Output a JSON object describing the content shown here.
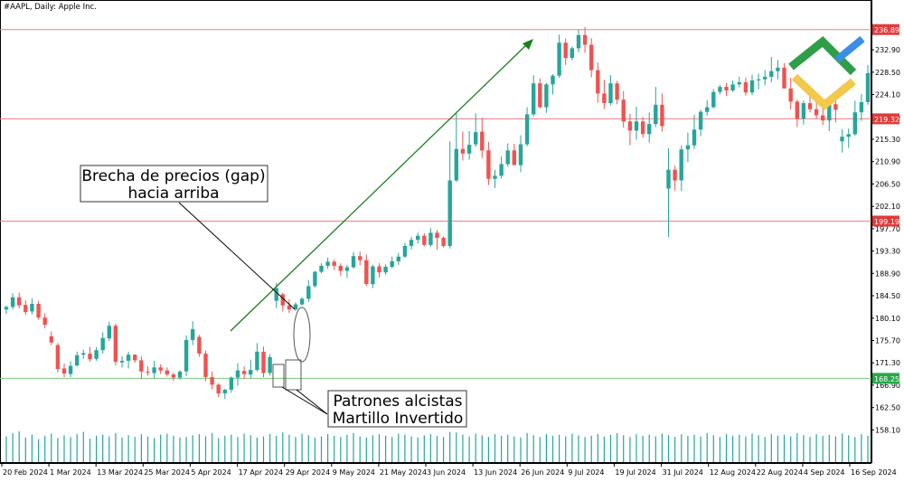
{
  "header": {
    "title": "#AAPL, Daily:  Apple Inc."
  },
  "colors": {
    "bull": "#26a69a",
    "bear": "#ef5350",
    "resistance_line": "#f08080",
    "support_line": "#7fc97f",
    "price_label_red": "#e03b3b",
    "price_label_green": "#27a84a",
    "trend_arrow": "#1a7f1a",
    "volume": "#26a69a",
    "logo_green": "#2e9e48",
    "logo_blue": "#3a8ee6",
    "logo_yellow": "#f2c94c"
  },
  "icons": {
    "logo": "litefinance-logo-icon"
  },
  "annotations": {
    "gap_callout": {
      "line1": "Brecha de precios (gap)",
      "line2": "hacia arriba"
    },
    "pattern_callout": {
      "line1": "Patrones alcistas",
      "line2": "Martillo Invertido"
    }
  },
  "chart_data": {
    "type": "candlestick",
    "title": "#AAPL, Daily:  Apple Inc.",
    "ylim": [
      155.5,
      239.5
    ],
    "y_ticks": [
      "232.90",
      "228.50",
      "224.10",
      "219.70",
      "215.30",
      "210.90",
      "206.50",
      "202.10",
      "197.70",
      "193.30",
      "188.90",
      "184.50",
      "180.10",
      "175.70",
      "171.30",
      "166.90",
      "162.50",
      "158.10"
    ],
    "x_ticks": [
      "20 Feb 2024",
      "1 Mar 2024",
      "13 Mar 2024",
      "25 Mar 2024",
      "5 Apr 2024",
      "17 Apr 2024",
      "29 Apr 2024",
      "9 May 2024",
      "21 May 2024",
      "3 Jun 2024",
      "13 Jun 2024",
      "26 Jun 2024",
      "9 Jul 2024",
      "19 Jul 2024",
      "31 Jul 2024",
      "12 Aug 2024",
      "22 Aug 2024",
      "4 Sep 2024",
      "16 Sep 2024"
    ],
    "horizontal_levels": [
      {
        "price": 236.89,
        "label": "236.89",
        "kind": "resistance"
      },
      {
        "price": 219.32,
        "label": "219.32",
        "kind": "resistance"
      },
      {
        "price": 199.19,
        "label": "199.19",
        "kind": "resistance"
      },
      {
        "price": 168.25,
        "label": "168.25",
        "kind": "support"
      }
    ],
    "ohlc": [
      [
        181.8,
        182.6,
        180.9,
        182.3
      ],
      [
        182.3,
        185.0,
        181.8,
        184.2
      ],
      [
        184.2,
        185.1,
        182.0,
        182.6
      ],
      [
        182.7,
        183.6,
        180.7,
        181.3
      ],
      [
        181.4,
        184.0,
        180.8,
        182.9
      ],
      [
        182.9,
        183.5,
        179.8,
        180.2
      ],
      [
        180.2,
        181.1,
        178.1,
        178.8
      ],
      [
        176.5,
        177.5,
        174.8,
        175.3
      ],
      [
        174.8,
        175.2,
        169.4,
        170.1
      ],
      [
        170.2,
        171.1,
        168.5,
        169.2
      ],
      [
        169.1,
        171.6,
        168.5,
        170.7
      ],
      [
        170.8,
        173.5,
        170.5,
        172.8
      ],
      [
        172.9,
        173.9,
        172.1,
        173.2
      ],
      [
        173.1,
        174.4,
        171.5,
        172.0
      ],
      [
        172.1,
        174.4,
        171.7,
        173.8
      ],
      [
        173.8,
        177.3,
        173.1,
        176.2
      ],
      [
        176.1,
        179.4,
        175.6,
        178.6
      ],
      [
        178.6,
        179.0,
        170.8,
        171.5
      ],
      [
        171.4,
        172.6,
        170.4,
        171.7
      ],
      [
        171.7,
        173.5,
        170.2,
        172.9
      ],
      [
        172.9,
        173.0,
        171.3,
        171.8
      ],
      [
        171.8,
        172.6,
        168.1,
        169.6
      ],
      [
        169.6,
        170.6,
        168.8,
        169.4
      ],
      [
        169.3,
        171.7,
        168.2,
        170.4
      ],
      [
        170.4,
        171.0,
        169.1,
        169.8
      ],
      [
        169.8,
        170.4,
        168.6,
        169.0
      ],
      [
        169.0,
        169.4,
        167.8,
        168.4
      ],
      [
        168.4,
        169.8,
        168.0,
        169.6
      ],
      [
        169.6,
        176.7,
        168.7,
        175.8
      ],
      [
        175.8,
        179.5,
        174.8,
        177.9
      ],
      [
        176.4,
        176.8,
        172.5,
        173.1
      ],
      [
        173.1,
        173.7,
        167.7,
        168.5
      ],
      [
        168.5,
        169.6,
        166.1,
        167.0
      ],
      [
        167.0,
        167.3,
        164.5,
        165.3
      ],
      [
        165.3,
        166.2,
        164.2,
        166.0
      ],
      [
        166.0,
        168.6,
        165.4,
        168.4
      ],
      [
        168.4,
        171.2,
        166.8,
        169.8
      ],
      [
        169.7,
        170.6,
        168.1,
        169.1
      ],
      [
        169.0,
        171.9,
        168.3,
        169.9
      ],
      [
        169.9,
        175.2,
        169.6,
        173.5
      ],
      [
        173.5,
        174.5,
        168.5,
        169.3
      ],
      [
        169.3,
        173.0,
        168.8,
        172.4
      ],
      [
        183.5,
        187.0,
        182.1,
        186.0
      ],
      [
        184.8,
        185.1,
        181.4,
        182.6
      ],
      [
        182.6,
        183.8,
        181.1,
        181.8
      ],
      [
        181.8,
        183.2,
        181.5,
        182.8
      ],
      [
        182.8,
        184.2,
        182.6,
        183.9
      ],
      [
        183.9,
        187.6,
        183.3,
        186.4
      ],
      [
        186.4,
        189.4,
        186.1,
        189.2
      ],
      [
        189.2,
        190.9,
        188.9,
        190.4
      ],
      [
        190.4,
        192.0,
        189.8,
        191.2
      ],
      [
        191.2,
        191.6,
        189.6,
        190.4
      ],
      [
        190.4,
        190.9,
        188.4,
        189.4
      ],
      [
        189.4,
        190.6,
        188.0,
        190.1
      ],
      [
        190.1,
        193.1,
        189.9,
        192.3
      ],
      [
        192.3,
        193.2,
        190.5,
        191.5
      ],
      [
        191.5,
        192.6,
        186.4,
        186.8
      ],
      [
        186.8,
        190.6,
        186.0,
        190.3
      ],
      [
        190.3,
        190.9,
        188.1,
        189.1
      ],
      [
        189.1,
        190.7,
        188.6,
        190.2
      ],
      [
        190.2,
        192.2,
        189.9,
        191.3
      ],
      [
        191.3,
        192.9,
        190.6,
        192.2
      ],
      [
        192.2,
        194.9,
        192.0,
        194.3
      ],
      [
        194.3,
        196.1,
        193.6,
        195.5
      ],
      [
        195.5,
        196.9,
        194.8,
        196.3
      ],
      [
        196.3,
        196.8,
        194.2,
        194.5
      ],
      [
        194.5,
        197.8,
        194.1,
        196.9
      ],
      [
        196.9,
        197.4,
        193.6,
        195.9
      ],
      [
        195.9,
        196.2,
        194.0,
        194.3
      ],
      [
        194.3,
        214.9,
        193.8,
        207.2
      ],
      [
        207.2,
        220.4,
        206.9,
        213.4
      ],
      [
        213.4,
        216.8,
        211.1,
        212.5
      ],
      [
        212.5,
        216.9,
        211.3,
        214.2
      ],
      [
        214.3,
        220.4,
        213.8,
        216.7
      ],
      [
        216.8,
        219.5,
        211.6,
        213.1
      ],
      [
        213.1,
        214.8,
        206.3,
        207.5
      ],
      [
        207.5,
        209.3,
        205.7,
        208.1
      ],
      [
        208.1,
        211.9,
        207.6,
        210.4
      ],
      [
        210.4,
        214.5,
        209.9,
        213.1
      ],
      [
        213.1,
        214.4,
        210.6,
        210.2
      ],
      [
        210.2,
        216.1,
        208.8,
        214.3
      ],
      [
        214.3,
        221.6,
        213.9,
        220.2
      ],
      [
        220.2,
        227.9,
        219.8,
        226.3
      ],
      [
        226.3,
        227.3,
        221.4,
        221.6
      ],
      [
        221.6,
        226.4,
        220.5,
        226.1
      ],
      [
        226.1,
        228.1,
        224.1,
        227.8
      ],
      [
        227.8,
        235.9,
        227.4,
        234.3
      ],
      [
        234.3,
        235.1,
        229.9,
        231.3
      ],
      [
        231.3,
        233.6,
        230.8,
        233.2
      ],
      [
        233.2,
        236.9,
        232.4,
        235.8
      ],
      [
        235.8,
        237.4,
        232.3,
        233.9
      ],
      [
        233.9,
        235.2,
        227.5,
        228.9
      ],
      [
        228.9,
        230.4,
        222.5,
        224.3
      ],
      [
        224.3,
        227.0,
        221.3,
        222.4
      ],
      [
        222.4,
        227.9,
        222.0,
        226.3
      ],
      [
        226.3,
        226.8,
        222.2,
        223.1
      ],
      [
        223.1,
        224.8,
        217.6,
        218.8
      ],
      [
        218.8,
        220.3,
        214.1,
        217.0
      ],
      [
        217.0,
        221.7,
        215.2,
        218.8
      ],
      [
        218.8,
        219.7,
        215.6,
        216.3
      ],
      [
        216.3,
        220.6,
        214.6,
        218.3
      ],
      [
        218.3,
        225.6,
        217.7,
        222.1
      ],
      [
        222.1,
        224.3,
        216.8,
        217.9
      ],
      [
        205.6,
        213.5,
        196.1,
        209.3
      ],
      [
        209.3,
        210.1,
        205.2,
        207.2
      ],
      [
        207.2,
        214.1,
        205.1,
        213.3
      ],
      [
        213.3,
        216.6,
        210.8,
        214.1
      ],
      [
        214.1,
        220.1,
        213.4,
        217.2
      ],
      [
        217.2,
        221.1,
        215.9,
        220.7
      ],
      [
        220.7,
        223.0,
        219.9,
        221.6
      ],
      [
        221.6,
        225.2,
        221.4,
        224.6
      ],
      [
        224.6,
        226.0,
        224.1,
        225.6
      ],
      [
        225.6,
        226.4,
        223.8,
        224.9
      ],
      [
        224.9,
        226.9,
        224.6,
        226.1
      ],
      [
        226.1,
        227.6,
        225.5,
        226.5
      ],
      [
        226.5,
        227.4,
        223.9,
        224.5
      ],
      [
        224.5,
        228.0,
        224.0,
        226.9
      ],
      [
        226.9,
        228.2,
        225.1,
        227.1
      ],
      [
        227.1,
        228.9,
        225.9,
        227.6
      ],
      [
        227.6,
        231.5,
        226.5,
        228.7
      ],
      [
        228.7,
        230.9,
        227.1,
        229.4
      ],
      [
        229.4,
        230.3,
        225.6,
        225.3
      ],
      [
        225.3,
        227.4,
        221.2,
        222.7
      ],
      [
        222.7,
        223.1,
        217.7,
        219.3
      ],
      [
        219.3,
        222.9,
        218.2,
        222.4
      ],
      [
        222.4,
        223.8,
        220.6,
        221.2
      ],
      [
        221.2,
        223.3,
        219.3,
        220.0
      ],
      [
        220.0,
        221.8,
        218.1,
        219.0
      ],
      [
        219.0,
        223.4,
        216.9,
        222.2
      ],
      [
        222.2,
        224.5,
        218.6,
        221.1
      ],
      [
        214.9,
        217.3,
        212.7,
        215.8
      ],
      [
        215.8,
        217.4,
        213.6,
        216.3
      ],
      [
        216.3,
        222.9,
        216.0,
        220.6
      ],
      [
        220.6,
        224.2,
        218.9,
        222.6
      ],
      [
        222.6,
        229.9,
        222.1,
        228.3
      ]
    ],
    "volume": [
      46,
      52,
      55,
      44,
      49,
      41,
      47,
      51,
      43,
      48,
      45,
      50,
      54,
      42,
      47,
      49,
      46,
      52,
      44,
      48,
      45,
      50,
      46,
      43,
      49,
      51,
      47,
      44,
      45,
      48,
      50,
      46,
      52,
      43,
      47,
      49,
      45,
      51,
      48,
      44,
      46,
      50,
      47,
      53,
      49,
      45,
      51,
      48,
      44,
      46,
      50,
      47,
      45,
      49,
      52,
      46,
      44,
      48,
      50,
      47,
      45,
      51,
      49,
      46,
      44,
      48,
      50,
      47,
      45,
      54,
      53,
      49,
      46,
      51,
      48,
      45,
      50,
      47,
      49,
      46,
      44,
      52,
      48,
      45,
      50,
      47,
      49,
      46,
      51,
      48,
      45,
      47,
      50,
      46,
      49,
      52,
      48,
      45,
      50,
      47,
      49,
      46,
      51,
      48,
      45,
      50,
      47,
      49,
      46,
      52,
      48,
      45,
      50,
      47,
      49,
      46,
      51,
      48,
      45,
      50,
      47,
      49,
      46,
      52,
      48,
      45,
      50,
      47,
      49,
      46,
      51,
      48,
      45,
      50,
      47
    ]
  }
}
